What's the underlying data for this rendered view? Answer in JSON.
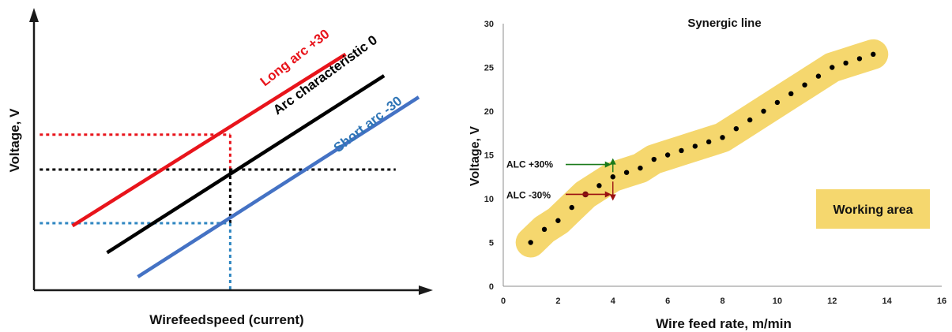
{
  "chart_data": [
    {
      "type": "line",
      "title": "",
      "xlabel": "Wirefeedspeed (current)",
      "ylabel": "Voltage, V",
      "grid": false,
      "series": [
        {
          "name": "Long arc +30",
          "color": "#e8141b",
          "x": [
            1.0,
            8.1
          ],
          "y": [
            2.4,
            8.8
          ]
        },
        {
          "name": "Arc characteristic 0",
          "color": "#000000",
          "x": [
            1.9,
            9.1
          ],
          "y": [
            1.4,
            8.0
          ]
        },
        {
          "name": "Short arc -30",
          "color": "#4472c4",
          "x": [
            2.7,
            10.0
          ],
          "y": [
            0.5,
            7.2
          ]
        }
      ],
      "reference_lines": [
        {
          "color": "#e8141b",
          "x": 5.1,
          "y": 5.8
        },
        {
          "color": "#000000",
          "x": 5.1,
          "y": 4.5
        },
        {
          "color": "#2e86c1",
          "x": 5.1,
          "y": 2.5
        }
      ]
    },
    {
      "type": "scatter",
      "title": "Synergic line",
      "xlabel": "Wire feed rate, m/min",
      "ylabel": "Voltage, V",
      "xlim": [
        0,
        16
      ],
      "ylim": [
        0,
        30
      ],
      "xticks": [
        "0",
        "2",
        "4",
        "6",
        "8",
        "10",
        "12",
        "14",
        "16"
      ],
      "yticks": [
        "0",
        "5",
        "10",
        "15",
        "20",
        "25",
        "30"
      ],
      "grid": false,
      "series": [
        {
          "name": "Synergic line",
          "color": "#000000",
          "x": [
            1.0,
            1.5,
            2.0,
            2.5,
            3.0,
            3.5,
            4.0,
            4.5,
            5.0,
            5.5,
            6.0,
            6.5,
            7.0,
            7.5,
            8.0,
            8.5,
            9.0,
            9.5,
            10.0,
            10.5,
            11.0,
            11.5,
            12.0,
            12.5,
            13.0,
            13.5
          ],
          "y": [
            5.0,
            6.5,
            7.5,
            9.0,
            10.5,
            11.5,
            12.5,
            13.0,
            13.5,
            14.5,
            15.0,
            15.5,
            16.0,
            16.5,
            17.0,
            18.0,
            19.0,
            20.0,
            21.0,
            22.0,
            23.0,
            24.0,
            25.0,
            25.5,
            26.0,
            26.5
          ]
        }
      ],
      "working_area": {
        "label": "Working area",
        "color": "#f5d76e"
      },
      "annotations": [
        {
          "text": "ALC +30%",
          "x": 4.0,
          "y": 14.0,
          "color": "#1a7a1a"
        },
        {
          "text": "ALC -30%",
          "x": 4.0,
          "y": 10.5,
          "color": "#9b1111"
        }
      ]
    }
  ]
}
